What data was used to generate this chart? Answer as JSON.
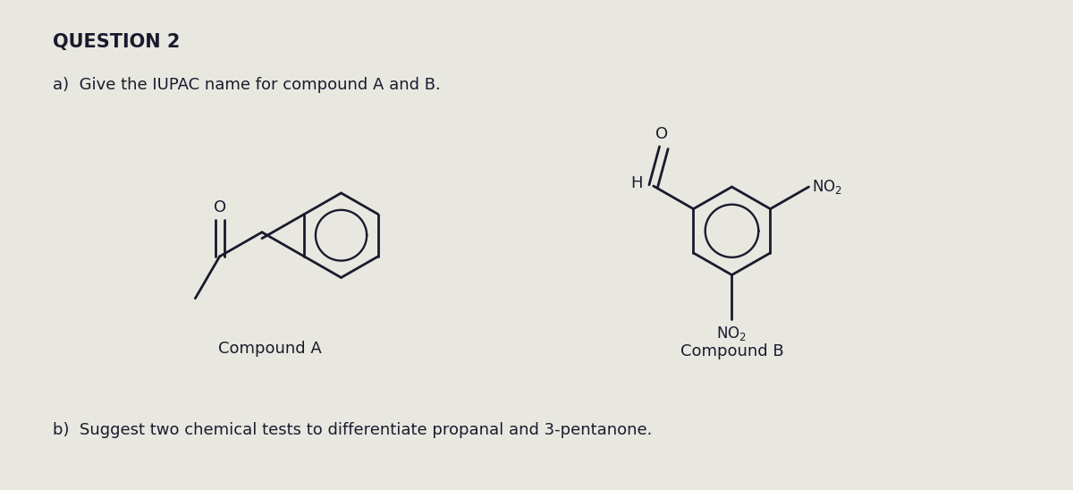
{
  "background_color": "#e8e8e0",
  "title": "QUESTION 2",
  "part_a_text": "a)  Give the IUPAC name for compound A and B.",
  "part_b_text": "b)  Suggest two chemical tests to differentiate propanal and 3-pentanone.",
  "compound_a_label": "Compound A",
  "compound_b_label": "Compound B",
  "fig_width": 12.0,
  "fig_height": 5.48,
  "lw": 2.0,
  "text_color": "#1a1a2e",
  "title_fontsize": 15,
  "body_fontsize": 13,
  "struct_fontsize": 12
}
